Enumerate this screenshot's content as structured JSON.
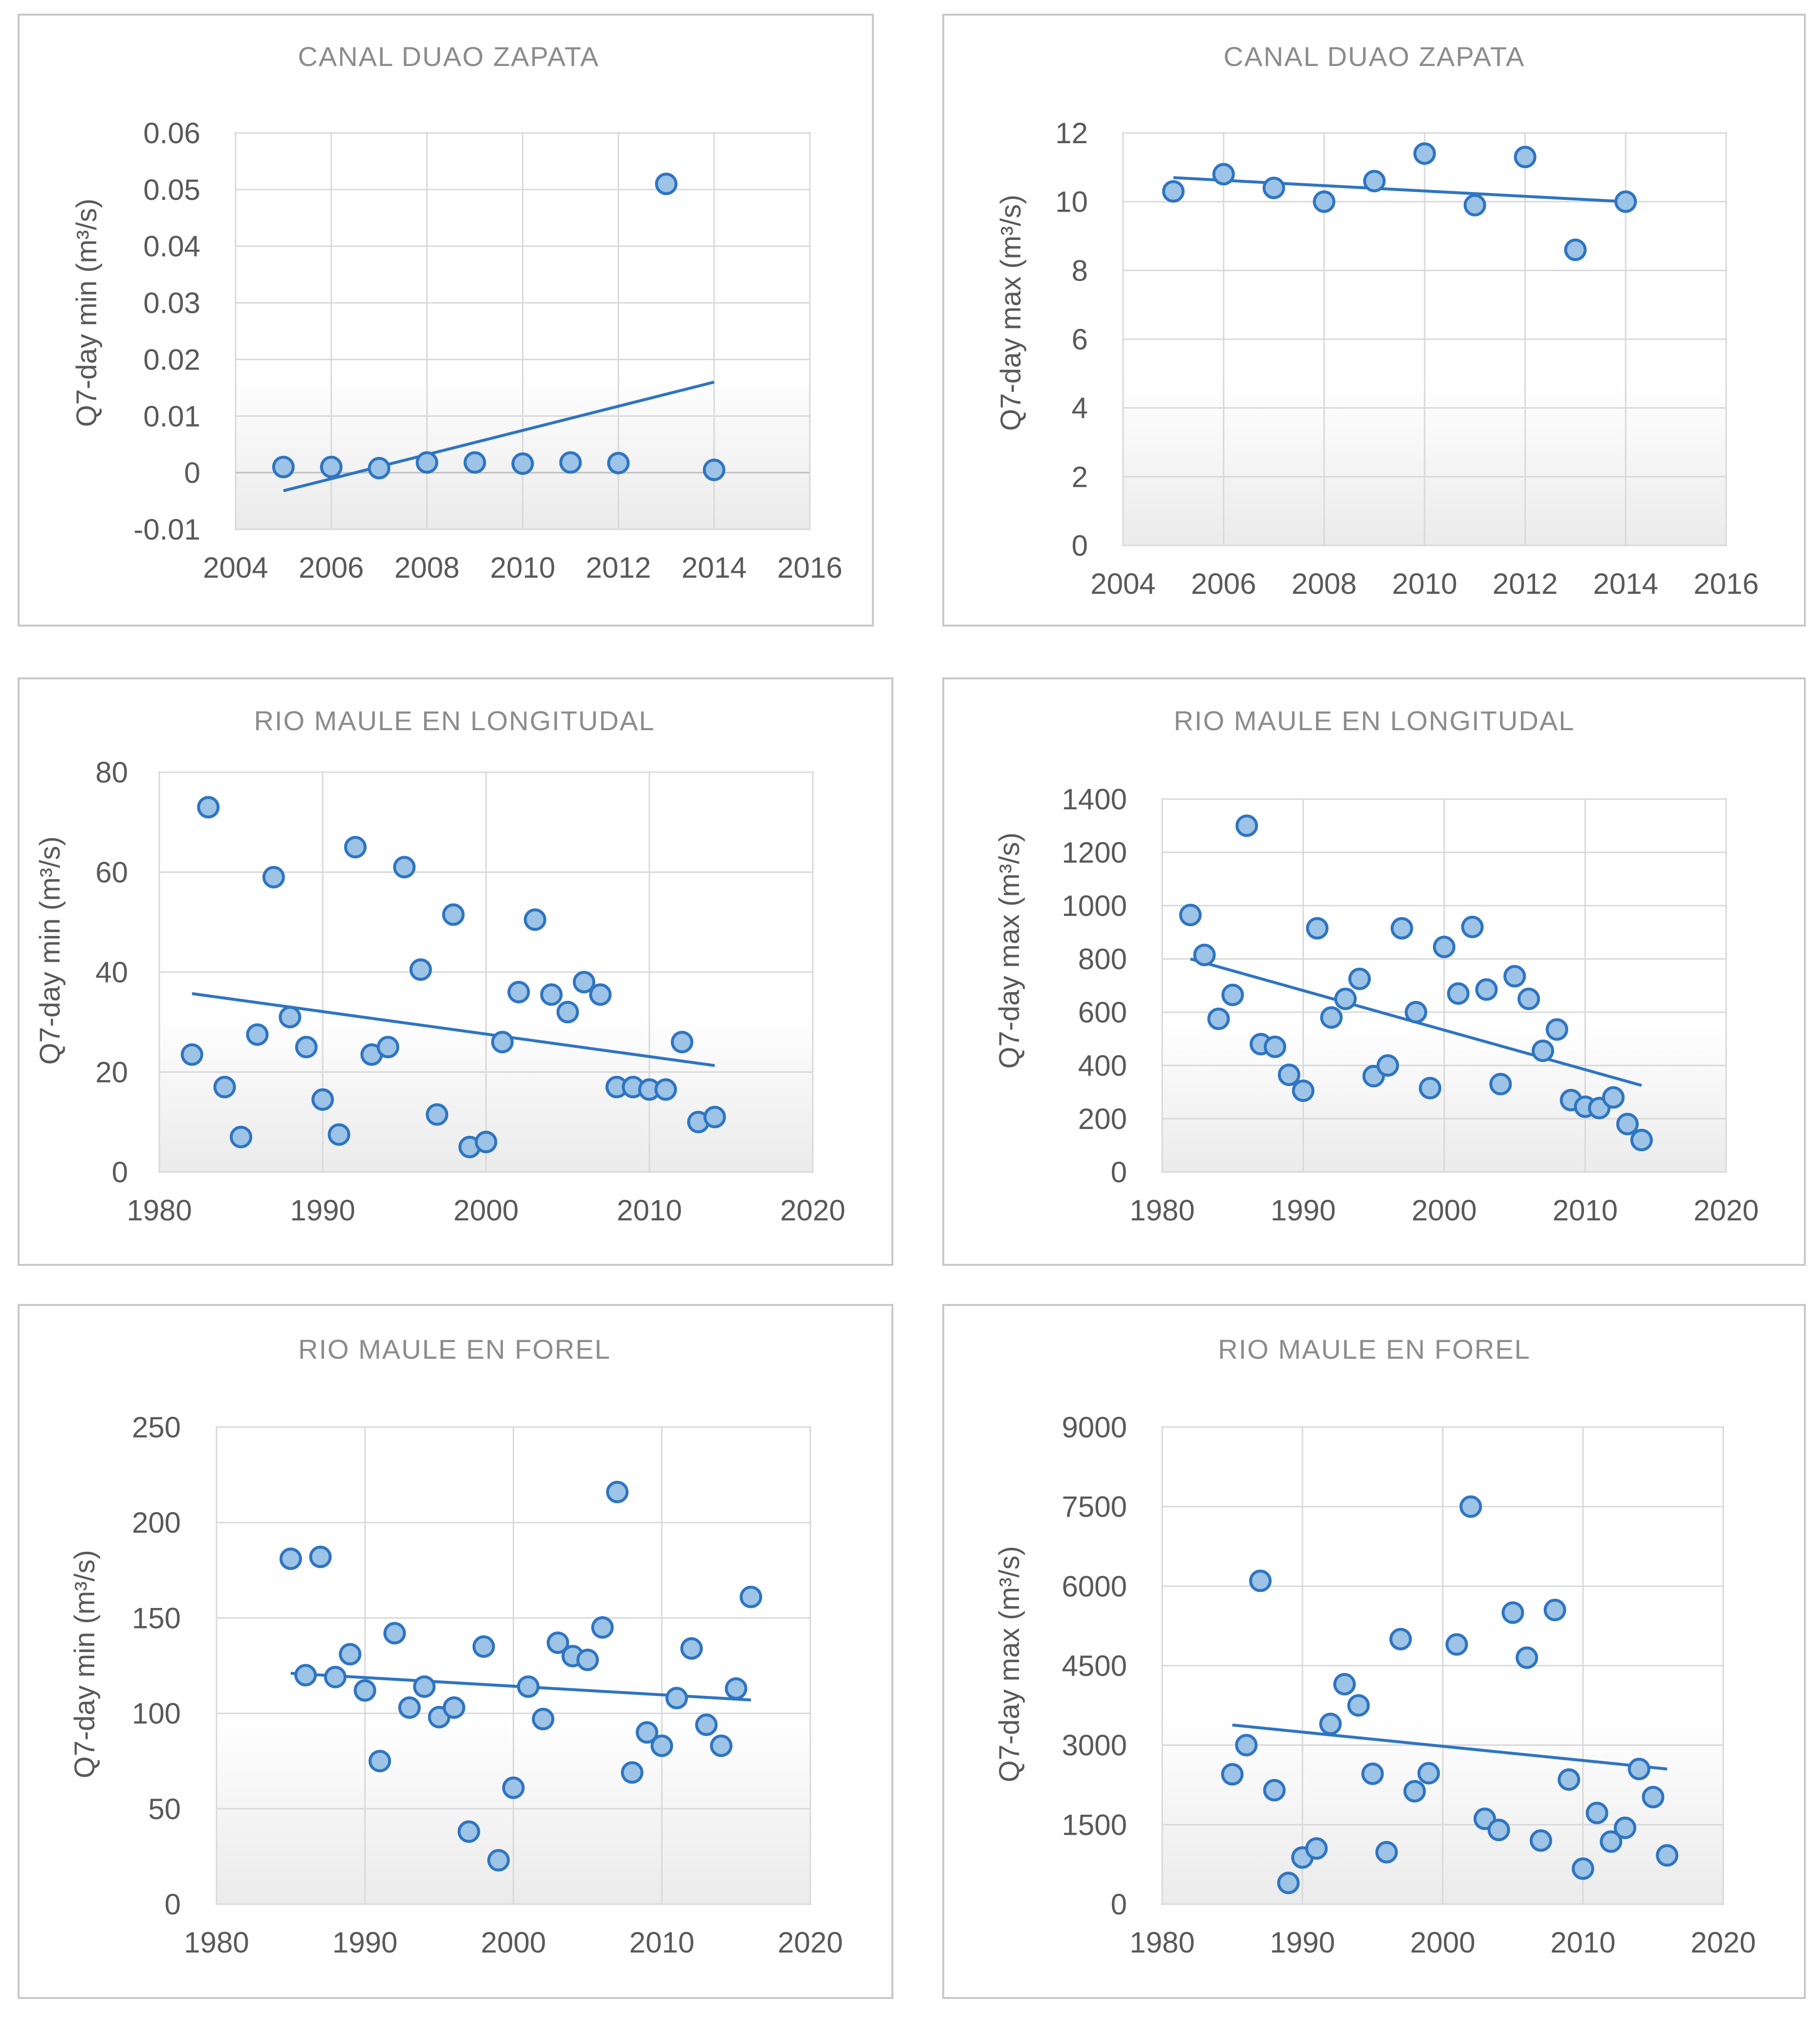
{
  "chart_data": [
    {
      "type": "scatter",
      "title": "CANAL DUAO ZAPATA",
      "ylabel": "Q7-day min (m³/s)",
      "xlim": [
        2004,
        2016
      ],
      "ylim": [
        -0.01,
        0.06
      ],
      "xticks": [
        "2004",
        "2006",
        "2008",
        "2010",
        "2012",
        "2014",
        "2016"
      ],
      "yticks": [
        "-0.01",
        "0",
        "0.01",
        "0.02",
        "0.03",
        "0.04",
        "0.05",
        "0.06"
      ],
      "grid": true,
      "x": [
        2005,
        2006,
        2007,
        2008,
        2009,
        2010,
        2011,
        2012,
        2013,
        2014
      ],
      "y": [
        0.001,
        0.001,
        0.0008,
        0.0018,
        0.0018,
        0.0016,
        0.0018,
        0.0017,
        0.051,
        0.0005
      ],
      "trendline": {
        "x": [
          2005,
          2014
        ],
        "y": [
          -0.0032,
          0.016
        ]
      }
    },
    {
      "type": "scatter",
      "title": "CANAL DUAO ZAPATA",
      "ylabel": "Q7-day max (m³/s)",
      "xlim": [
        2004,
        2016
      ],
      "ylim": [
        0,
        12
      ],
      "xticks": [
        "2004",
        "2006",
        "2008",
        "2010",
        "2012",
        "2014",
        "2016"
      ],
      "yticks": [
        "0",
        "2",
        "4",
        "6",
        "8",
        "10",
        "12"
      ],
      "grid": true,
      "x": [
        2005,
        2006,
        2007,
        2008,
        2009,
        2010,
        2011,
        2012,
        2013,
        2014
      ],
      "y": [
        10.3,
        10.8,
        10.4,
        10.0,
        10.6,
        11.4,
        9.9,
        11.3,
        8.6,
        10.0
      ],
      "trendline": {
        "x": [
          2005,
          2014
        ],
        "y": [
          10.7,
          10.0
        ]
      }
    },
    {
      "type": "scatter",
      "title": "RIO MAULE EN LONGITUDAL",
      "ylabel": "Q7-day min (m³/s)",
      "xlim": [
        1980,
        2020
      ],
      "ylim": [
        0,
        80
      ],
      "xticks": [
        "1980",
        "1990",
        "2000",
        "2010",
        "2020"
      ],
      "yticks": [
        "0",
        "20",
        "40",
        "60",
        "80"
      ],
      "grid": true,
      "x": [
        1982,
        1983,
        1984,
        1985,
        1986,
        1987,
        1988,
        1989,
        1990,
        1991,
        1992,
        1993,
        1994,
        1995,
        1996,
        1997,
        1998,
        1999,
        2000,
        2001,
        2002,
        2003,
        2004,
        2005,
        2006,
        2007,
        2008,
        2009,
        2010,
        2011,
        2012,
        2013,
        2014
      ],
      "y": [
        23.5,
        73,
        17,
        7,
        27.5,
        59,
        31,
        25,
        14.5,
        7.5,
        65,
        23.5,
        25,
        61,
        40.5,
        11.5,
        51.5,
        5,
        6,
        26,
        36,
        50.5,
        35.5,
        32,
        38,
        35.5,
        17,
        17,
        16.5,
        16.5,
        26,
        10,
        11
      ],
      "trendline": {
        "x": [
          1982,
          2014
        ],
        "y": [
          35.7,
          21.3
        ]
      }
    },
    {
      "type": "scatter",
      "title": "RIO MAULE EN LONGITUDAL",
      "ylabel": "Q7-day max (m³/s)",
      "xlim": [
        1980,
        2020
      ],
      "ylim": [
        0,
        1400
      ],
      "xticks": [
        "1980",
        "1990",
        "2000",
        "2010",
        "2020"
      ],
      "yticks": [
        "0",
        "200",
        "400",
        "600",
        "800",
        "1000",
        "1200",
        "1400"
      ],
      "grid": true,
      "x": [
        1982,
        1983,
        1984,
        1985,
        1986,
        1987,
        1988,
        1989,
        1990,
        1991,
        1992,
        1993,
        1994,
        1995,
        1996,
        1997,
        1998,
        1999,
        2000,
        2001,
        2002,
        2003,
        2004,
        2005,
        2006,
        2007,
        2008,
        2009,
        2010,
        2011,
        2012,
        2013,
        2014
      ],
      "y": [
        965,
        815,
        575,
        665,
        1300,
        480,
        470,
        365,
        305,
        915,
        580,
        650,
        725,
        360,
        400,
        915,
        600,
        315,
        845,
        670,
        920,
        685,
        330,
        735,
        650,
        455,
        535,
        270,
        245,
        240,
        280,
        180,
        120
      ],
      "trendline": {
        "x": [
          1982,
          2014
        ],
        "y": [
          800,
          325
        ]
      }
    },
    {
      "type": "scatter",
      "title": "RIO MAULE EN FOREL",
      "ylabel": "Q7-day min (m³/s)",
      "xlim": [
        1980,
        2020
      ],
      "ylim": [
        0,
        250
      ],
      "xticks": [
        "1980",
        "1990",
        "2000",
        "2010",
        "2020"
      ],
      "yticks": [
        "0",
        "50",
        "100",
        "150",
        "200",
        "250"
      ],
      "grid": true,
      "x": [
        1985,
        1986,
        1987,
        1988,
        1989,
        1990,
        1991,
        1992,
        1993,
        1994,
        1995,
        1996,
        1997,
        1998,
        1999,
        2000,
        2001,
        2002,
        2003,
        2004,
        2005,
        2006,
        2007,
        2008,
        2009,
        2010,
        2011,
        2012,
        2013,
        2014,
        2015,
        2016
      ],
      "y": [
        181,
        120,
        182,
        119,
        131,
        112,
        75,
        142,
        103,
        114,
        98,
        103,
        38,
        135,
        23,
        61,
        114,
        97,
        137,
        130,
        128,
        145,
        216,
        69,
        90,
        83,
        108,
        134,
        94,
        83,
        113,
        161
      ],
      "trendline": {
        "x": [
          1985,
          2016
        ],
        "y": [
          121,
          107
        ]
      }
    },
    {
      "type": "scatter",
      "title": "RIO MAULE EN FOREL",
      "ylabel": "Q7-day max (m³/s)",
      "xlim": [
        1980,
        2020
      ],
      "ylim": [
        0,
        9000
      ],
      "xticks": [
        "1980",
        "1990",
        "2000",
        "2010",
        "2020"
      ],
      "yticks": [
        "0",
        "1500",
        "3000",
        "4500",
        "6000",
        "7500",
        "9000"
      ],
      "grid": true,
      "x": [
        1985,
        1986,
        1987,
        1988,
        1989,
        1990,
        1991,
        1992,
        1993,
        1994,
        1995,
        1996,
        1997,
        1998,
        1999,
        2001,
        2002,
        2003,
        2004,
        2005,
        2006,
        2007,
        2008,
        2009,
        2010,
        2011,
        2012,
        2013,
        2014,
        2015,
        2016
      ],
      "y": [
        2450,
        3000,
        6100,
        2150,
        400,
        880,
        1050,
        3400,
        4150,
        3750,
        2460,
        980,
        5000,
        2130,
        2470,
        4900,
        7500,
        1610,
        1400,
        5500,
        4650,
        1200,
        5550,
        2350,
        670,
        1720,
        1180,
        1440,
        2550,
        2020,
        920
      ],
      "trendline": {
        "x": [
          1985,
          2016
        ],
        "y": [
          3380,
          2550
        ]
      }
    }
  ]
}
